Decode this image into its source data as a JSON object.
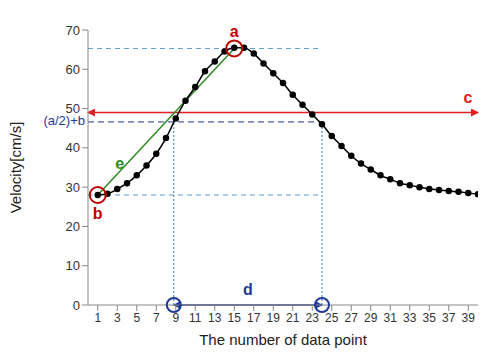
{
  "chart_data": {
    "type": "line",
    "xlabel": "The number of data point",
    "ylabel": "Velocity[cm/s]",
    "x": [
      1,
      2,
      3,
      4,
      5,
      6,
      7,
      8,
      9,
      10,
      11,
      12,
      13,
      14,
      15,
      16,
      17,
      18,
      19,
      20,
      21,
      22,
      23,
      24,
      25,
      26,
      27,
      28,
      29,
      30,
      31,
      32,
      33,
      34,
      35,
      36,
      37,
      38,
      39,
      40
    ],
    "values": [
      28,
      28.3,
      29.5,
      31,
      33,
      35.5,
      38.5,
      42.5,
      47.5,
      52,
      55.5,
      59.5,
      62,
      64.5,
      65.5,
      65.5,
      64,
      61.5,
      59,
      56.5,
      53.5,
      51,
      48.5,
      46,
      43,
      40.5,
      38,
      36,
      34.5,
      33,
      32,
      31,
      30.5,
      30,
      29.5,
      29.3,
      29,
      28.8,
      28.5,
      28.2
    ],
    "color": "#000000",
    "marker": "circle",
    "xlim": [
      0,
      40
    ],
    "xticks": [
      1,
      3,
      5,
      7,
      9,
      11,
      13,
      15,
      17,
      19,
      21,
      23,
      25,
      27,
      29,
      31,
      33,
      35,
      37,
      39
    ],
    "ylim": [
      0,
      70
    ],
    "yticks": [
      0,
      10,
      20,
      30,
      40,
      50,
      60,
      70
    ],
    "grid": false,
    "annotations": [
      {
        "label": "a",
        "x": 15,
        "y": 65.3,
        "color": "#c00000"
      },
      {
        "label": "b",
        "x": 1,
        "y": 28,
        "color": "#c00000"
      },
      {
        "label": "(a/2)+b",
        "x": [
          0,
          24
        ],
        "y": 46.6,
        "color": "#1f3a93"
      },
      {
        "label": "c",
        "x": [
          0,
          40
        ],
        "y": 49,
        "color": "#e02020"
      },
      {
        "label": "d",
        "x": [
          8.8,
          24
        ],
        "y": 0,
        "color": "#1f3a93"
      },
      {
        "label": "e",
        "x": [
          1,
          15
        ],
        "y": [
          28,
          65.3
        ],
        "color": "#2e8b22"
      }
    ]
  }
}
